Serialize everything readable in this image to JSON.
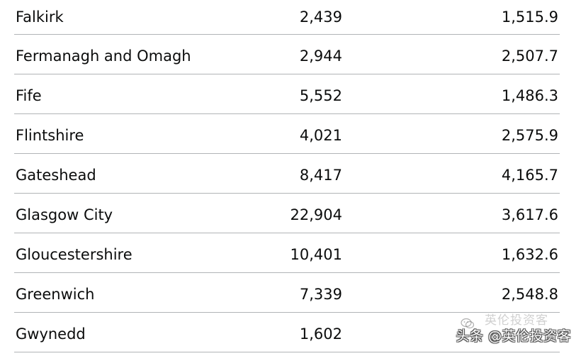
{
  "table": {
    "rows": [
      {
        "name": "Falkirk",
        "value1": "2,439",
        "value2": "1,515.9"
      },
      {
        "name": "Fermanagh and Omagh",
        "value1": "2,944",
        "value2": "2,507.7"
      },
      {
        "name": "Fife",
        "value1": "5,552",
        "value2": "1,486.3"
      },
      {
        "name": "Flintshire",
        "value1": "4,021",
        "value2": "2,575.9"
      },
      {
        "name": "Gateshead",
        "value1": "8,417",
        "value2": "4,165.7"
      },
      {
        "name": "Glasgow City",
        "value1": "22,904",
        "value2": "3,617.6"
      },
      {
        "name": "Gloucestershire",
        "value1": "10,401",
        "value2": "1,632.6"
      },
      {
        "name": "Greenwich",
        "value1": "7,339",
        "value2": "2,548.8"
      },
      {
        "name": "Gwynedd",
        "value1": "1,602",
        "value2": ""
      }
    ]
  },
  "watermark": {
    "text": "头条 @英伦投资客",
    "ghost_text": "英伦投资客",
    "icon": "wechat-icon"
  }
}
